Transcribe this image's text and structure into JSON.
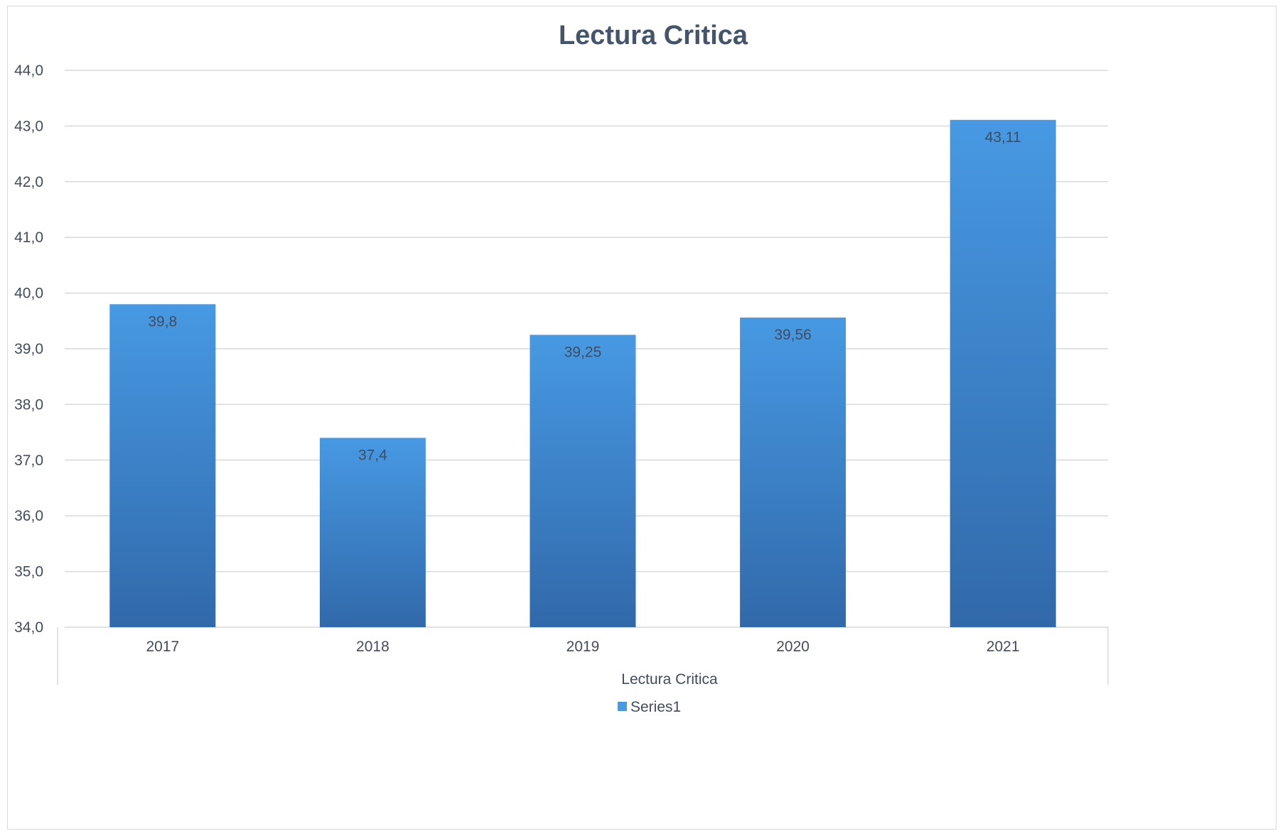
{
  "chart_data": {
    "type": "bar",
    "title": "Lectura Critica",
    "categories": [
      "2017",
      "2018",
      "2019",
      "2020",
      "2021"
    ],
    "series": [
      {
        "name": "Series1",
        "values": [
          39.8,
          37.4,
          39.25,
          39.56,
          43.11
        ],
        "value_labels": [
          "39,8",
          "37,4",
          "39,25",
          "39,56",
          "43,11"
        ]
      }
    ],
    "xlabel": "Lectura Critica",
    "ylabel": "",
    "ylim": [
      34,
      44
    ],
    "yticks": [
      "34,0",
      "35,0",
      "36,0",
      "37,0",
      "38,0",
      "39,0",
      "40,0",
      "41,0",
      "42,0",
      "43,0",
      "44,0"
    ],
    "grid": true,
    "legend_position": "bottom",
    "colors": {
      "bar_top": "#4799e3",
      "bar_bottom": "#3169aa",
      "grid": "#d9d9d9",
      "title": "#44546a"
    }
  }
}
